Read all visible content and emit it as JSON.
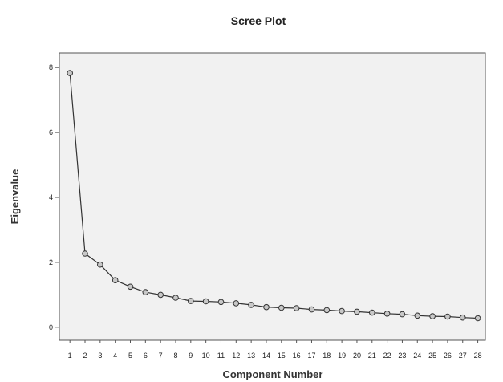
{
  "chart_data": {
    "type": "line",
    "title": "Scree Plot",
    "xlabel": "Component Number",
    "ylabel": "Eigenvalue",
    "x": [
      1,
      2,
      3,
      4,
      5,
      6,
      7,
      8,
      9,
      10,
      11,
      12,
      13,
      14,
      15,
      16,
      17,
      18,
      19,
      20,
      21,
      22,
      23,
      24,
      25,
      26,
      27,
      28
    ],
    "x_tick_labels": [
      "1",
      "2",
      "3",
      "4",
      "5",
      "6",
      "7",
      "8",
      "9",
      "10",
      "11",
      "12",
      "13",
      "14",
      "15",
      "16",
      "17",
      "18",
      "19",
      "20",
      "21",
      "22",
      "23",
      "24",
      "25",
      "26",
      "27",
      "28"
    ],
    "y_ticks": [
      0,
      2,
      4,
      6,
      8
    ],
    "y_tick_labels": [
      "0",
      "2",
      "4",
      "6",
      "8"
    ],
    "series": [
      {
        "values": [
          7.83,
          2.27,
          1.93,
          1.45,
          1.25,
          1.08,
          1.0,
          0.91,
          0.81,
          0.8,
          0.78,
          0.74,
          0.69,
          0.62,
          0.6,
          0.59,
          0.55,
          0.53,
          0.5,
          0.48,
          0.45,
          0.42,
          0.4,
          0.36,
          0.34,
          0.33,
          0.3,
          0.28
        ]
      }
    ],
    "ylim": [
      -0.4,
      8.45
    ],
    "xlim": [
      0.3,
      28.5
    ],
    "grid": false,
    "legend": "none",
    "colors": {
      "plot_background": "#f1f1f1",
      "line": "#333333",
      "marker_fill": "#c8c8c8",
      "marker_stroke": "#333333",
      "frame": "#555555"
    }
  }
}
